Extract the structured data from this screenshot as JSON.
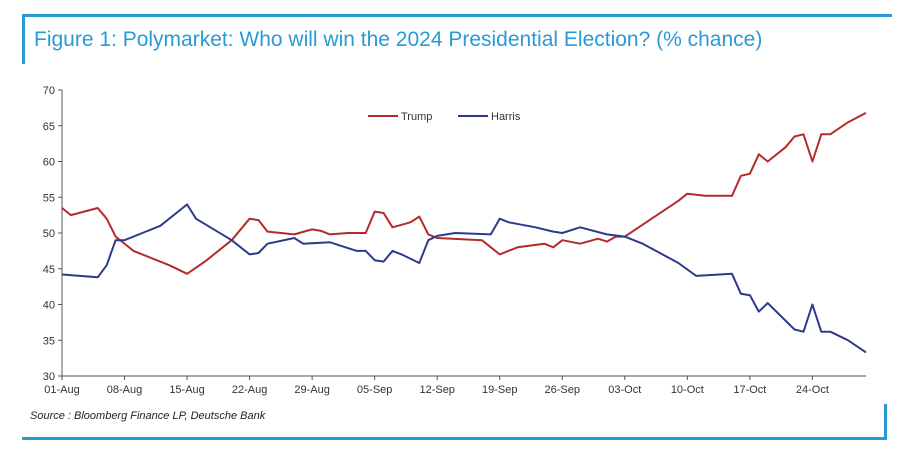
{
  "title": "Figure 1: Polymarket: Who will win the 2024 Presidential Election? (% chance)",
  "source": "Source : Bloomberg Finance LP, Deutsche Bank",
  "colors": {
    "frame": "#2a9ad6",
    "trump": "#b52a2a",
    "harris": "#2d3a8c"
  },
  "chart_data": {
    "type": "line",
    "title": "Figure 1: Polymarket: Who will win the 2024 Presidential Election? (% chance)",
    "xlabel": "",
    "ylabel": "",
    "ylim": [
      30,
      70
    ],
    "yticks": [
      30,
      35,
      40,
      45,
      50,
      55,
      60,
      65,
      70
    ],
    "xlim": [
      "2024-08-01",
      "2024-10-30"
    ],
    "xtick_labels": [
      "01-Aug",
      "08-Aug",
      "15-Aug",
      "22-Aug",
      "29-Aug",
      "05-Sep",
      "12-Sep",
      "19-Sep",
      "26-Sep",
      "03-Oct",
      "10-Oct",
      "17-Oct",
      "24-Oct"
    ],
    "xtick_dates": [
      "2024-08-01",
      "2024-08-08",
      "2024-08-15",
      "2024-08-22",
      "2024-08-29",
      "2024-09-05",
      "2024-09-12",
      "2024-09-19",
      "2024-09-26",
      "2024-10-03",
      "2024-10-10",
      "2024-10-17",
      "2024-10-24"
    ],
    "grid": false,
    "legend": "top-center",
    "series": [
      {
        "name": "Trump",
        "color": "#b52a2a",
        "points": [
          [
            "2024-08-01",
            53.5
          ],
          [
            "2024-08-02",
            52.5
          ],
          [
            "2024-08-05",
            53.5
          ],
          [
            "2024-08-06",
            52.0
          ],
          [
            "2024-08-07",
            49.5
          ],
          [
            "2024-08-09",
            47.5
          ],
          [
            "2024-08-13",
            45.5
          ],
          [
            "2024-08-15",
            44.3
          ],
          [
            "2024-08-17",
            46.0
          ],
          [
            "2024-08-20",
            49.0
          ],
          [
            "2024-08-22",
            52.0
          ],
          [
            "2024-08-23",
            51.8
          ],
          [
            "2024-08-24",
            50.2
          ],
          [
            "2024-08-27",
            49.8
          ],
          [
            "2024-08-29",
            50.5
          ],
          [
            "2024-08-30",
            50.3
          ],
          [
            "2024-08-31",
            49.8
          ],
          [
            "2024-09-02",
            50.0
          ],
          [
            "2024-09-04",
            50.0
          ],
          [
            "2024-09-05",
            53.0
          ],
          [
            "2024-09-06",
            52.8
          ],
          [
            "2024-09-07",
            50.8
          ],
          [
            "2024-09-09",
            51.5
          ],
          [
            "2024-09-10",
            52.3
          ],
          [
            "2024-09-11",
            49.8
          ],
          [
            "2024-09-12",
            49.3
          ],
          [
            "2024-09-17",
            49.0
          ],
          [
            "2024-09-19",
            47.0
          ],
          [
            "2024-09-21",
            48.0
          ],
          [
            "2024-09-24",
            48.5
          ],
          [
            "2024-09-25",
            48.0
          ],
          [
            "2024-09-26",
            49.0
          ],
          [
            "2024-09-28",
            48.5
          ],
          [
            "2024-09-30",
            49.2
          ],
          [
            "2024-10-01",
            48.8
          ],
          [
            "2024-10-02",
            49.5
          ],
          [
            "2024-10-03",
            49.5
          ],
          [
            "2024-10-06",
            52.0
          ],
          [
            "2024-10-09",
            54.5
          ],
          [
            "2024-10-10",
            55.5
          ],
          [
            "2024-10-12",
            55.2
          ],
          [
            "2024-10-15",
            55.2
          ],
          [
            "2024-10-16",
            58.0
          ],
          [
            "2024-10-17",
            58.3
          ],
          [
            "2024-10-18",
            61.0
          ],
          [
            "2024-10-19",
            60.0
          ],
          [
            "2024-10-21",
            62.0
          ],
          [
            "2024-10-22",
            63.5
          ],
          [
            "2024-10-23",
            63.8
          ],
          [
            "2024-10-24",
            60.0
          ],
          [
            "2024-10-25",
            63.8
          ],
          [
            "2024-10-26",
            63.8
          ],
          [
            "2024-10-28",
            65.5
          ],
          [
            "2024-10-30",
            66.8
          ]
        ]
      },
      {
        "name": "Harris",
        "color": "#2d3a8c",
        "points": [
          [
            "2024-08-01",
            44.2
          ],
          [
            "2024-08-05",
            43.8
          ],
          [
            "2024-08-06",
            45.5
          ],
          [
            "2024-08-07",
            49.0
          ],
          [
            "2024-08-08",
            49.0
          ],
          [
            "2024-08-10",
            50.0
          ],
          [
            "2024-08-12",
            51.0
          ],
          [
            "2024-08-14",
            53.0
          ],
          [
            "2024-08-15",
            54.0
          ],
          [
            "2024-08-16",
            52.0
          ],
          [
            "2024-08-20",
            49.0
          ],
          [
            "2024-08-22",
            47.0
          ],
          [
            "2024-08-23",
            47.2
          ],
          [
            "2024-08-24",
            48.5
          ],
          [
            "2024-08-27",
            49.3
          ],
          [
            "2024-08-28",
            48.5
          ],
          [
            "2024-08-31",
            48.7
          ],
          [
            "2024-09-03",
            47.5
          ],
          [
            "2024-09-04",
            47.5
          ],
          [
            "2024-09-05",
            46.2
          ],
          [
            "2024-09-06",
            46.0
          ],
          [
            "2024-09-07",
            47.5
          ],
          [
            "2024-09-08",
            47.0
          ],
          [
            "2024-09-10",
            45.8
          ],
          [
            "2024-09-11",
            49.0
          ],
          [
            "2024-09-12",
            49.6
          ],
          [
            "2024-09-14",
            50.0
          ],
          [
            "2024-09-18",
            49.8
          ],
          [
            "2024-09-19",
            52.0
          ],
          [
            "2024-09-20",
            51.5
          ],
          [
            "2024-09-23",
            50.8
          ],
          [
            "2024-09-25",
            50.2
          ],
          [
            "2024-09-26",
            50.0
          ],
          [
            "2024-09-28",
            50.8
          ],
          [
            "2024-10-01",
            49.8
          ],
          [
            "2024-10-03",
            49.5
          ],
          [
            "2024-10-05",
            48.5
          ],
          [
            "2024-10-09",
            45.8
          ],
          [
            "2024-10-11",
            44.0
          ],
          [
            "2024-10-15",
            44.3
          ],
          [
            "2024-10-16",
            41.5
          ],
          [
            "2024-10-17",
            41.3
          ],
          [
            "2024-10-18",
            39.0
          ],
          [
            "2024-10-19",
            40.2
          ],
          [
            "2024-10-22",
            36.5
          ],
          [
            "2024-10-23",
            36.2
          ],
          [
            "2024-10-24",
            40.0
          ],
          [
            "2024-10-25",
            36.2
          ],
          [
            "2024-10-26",
            36.2
          ],
          [
            "2024-10-28",
            35.0
          ],
          [
            "2024-10-30",
            33.3
          ]
        ]
      }
    ]
  }
}
